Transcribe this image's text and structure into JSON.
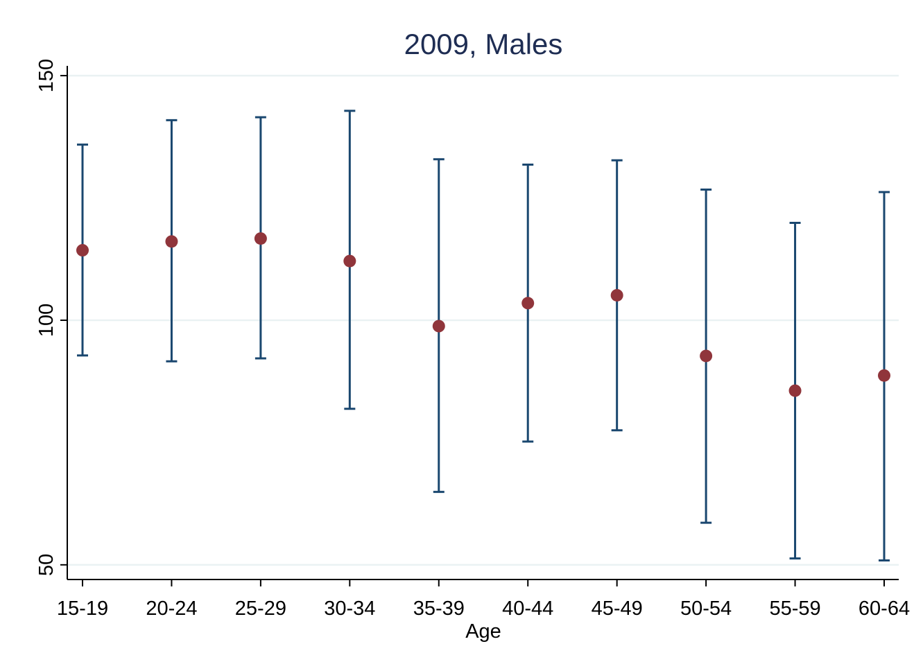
{
  "chart_data": {
    "type": "scatter",
    "title": "2009, Males",
    "xlabel": "Age",
    "ylabel": "",
    "categories": [
      "15-19",
      "20-24",
      "25-29",
      "30-34",
      "35-39",
      "40-44",
      "45-49",
      "50-54",
      "55-59",
      "60-64"
    ],
    "series": [
      {
        "values": [
          114.3,
          116.1,
          116.7,
          112.1,
          98.8,
          103.5,
          105.1,
          92.7,
          85.6,
          88.7
        ],
        "ci_low": [
          92.8,
          91.6,
          92.2,
          81.9,
          64.9,
          75.2,
          77.5,
          58.6,
          51.3,
          50.9
        ],
        "ci_high": [
          135.9,
          140.9,
          141.5,
          142.8,
          132.9,
          131.8,
          132.7,
          126.7,
          119.9,
          126.2
        ]
      }
    ],
    "ylim": [
      47,
      152
    ],
    "yticks": [
      50,
      100,
      150
    ],
    "grid": true,
    "legend": "none",
    "colors": {
      "point": "#90353b",
      "errorbar": "#1a476f",
      "title": "#1e2d53",
      "grid": "#eaf2f3",
      "axis": "#000000"
    }
  }
}
